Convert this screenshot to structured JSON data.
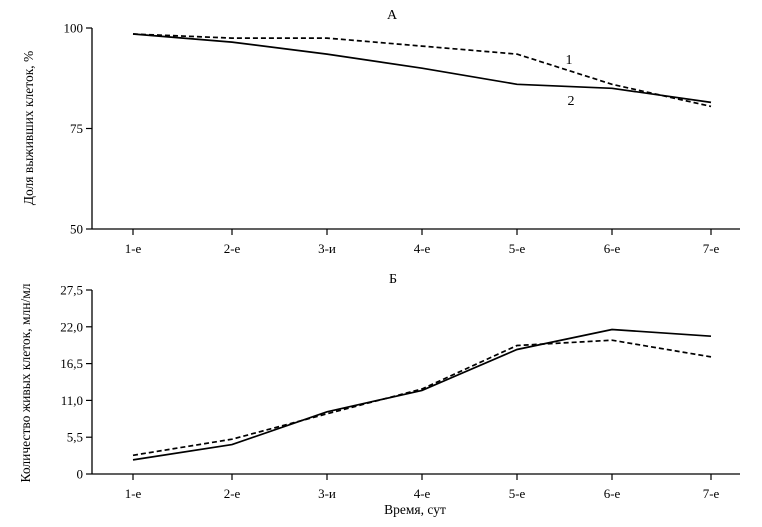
{
  "chart_data": [
    {
      "type": "line",
      "title": "А",
      "xlabel": "",
      "ylabel": "Доля выживших клеток, %",
      "categories": [
        "1-е",
        "2-е",
        "3-и",
        "4-е",
        "5-е",
        "6-е",
        "7-е"
      ],
      "ylim": [
        50,
        100
      ],
      "yticks": [
        "50",
        "75",
        "100"
      ],
      "series": [
        {
          "name": "1",
          "style": "dashed",
          "values": [
            98.5,
            97.5,
            97.5,
            95.5,
            93.5,
            86.0,
            80.5
          ]
        },
        {
          "name": "2",
          "style": "solid",
          "values": [
            98.5,
            96.5,
            93.5,
            90.0,
            86.0,
            85.0,
            81.5
          ]
        }
      ],
      "grid": false
    },
    {
      "type": "line",
      "title": "Б",
      "xlabel": "Время, сут",
      "ylabel": "Количество живых клеток, млн/мл",
      "categories": [
        "1-е",
        "2-е",
        "3-и",
        "4-е",
        "5-е",
        "6-е",
        "7-е"
      ],
      "ylim": [
        0,
        27.5
      ],
      "yticks": [
        "0",
        "5,5",
        "11,0",
        "16,5",
        "22,0",
        "27,5"
      ],
      "series": [
        {
          "style": "dashed",
          "values": [
            2.8,
            5.2,
            9.0,
            12.7,
            19.2,
            20.0,
            17.5
          ]
        },
        {
          "style": "solid",
          "values": [
            2.1,
            4.4,
            9.3,
            12.5,
            18.6,
            21.6,
            20.6
          ]
        }
      ],
      "grid": false
    }
  ]
}
